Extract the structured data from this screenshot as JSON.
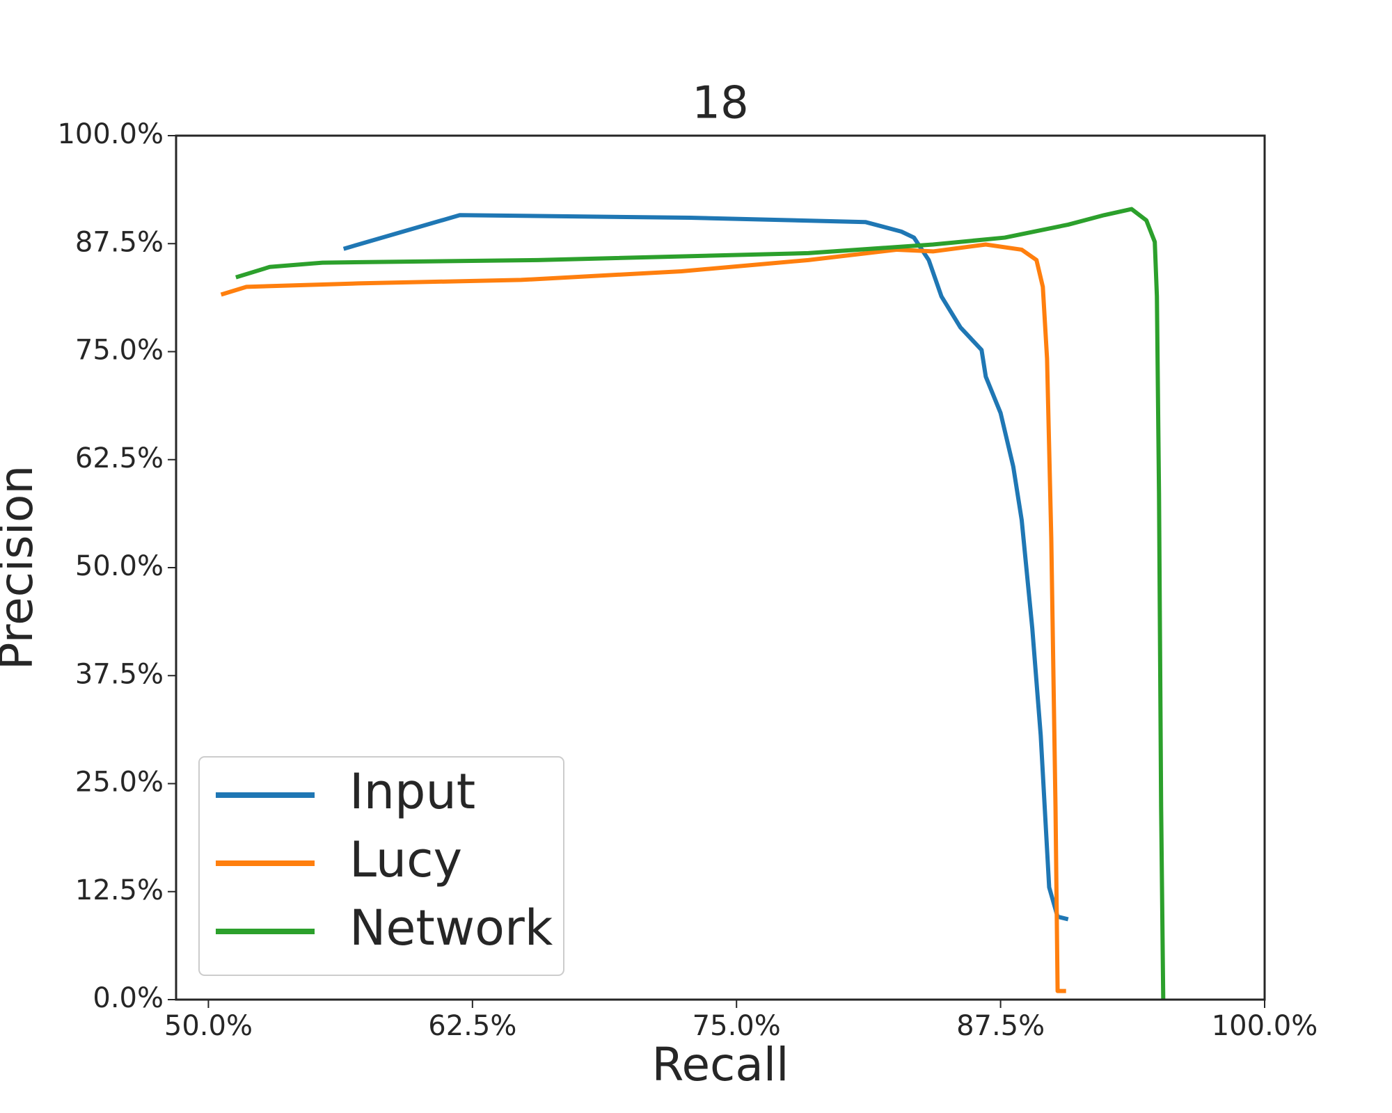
{
  "chart_data": {
    "type": "line",
    "title": "18",
    "x_label": "Recall",
    "y_label": "Precision",
    "xlim": [
      48.47,
      100
    ],
    "ylim": [
      0,
      100
    ],
    "xticks": [
      {
        "value": 50,
        "label": "50.0%"
      },
      {
        "value": 62.5,
        "label": "62.5%"
      },
      {
        "value": 75,
        "label": "75.0%"
      },
      {
        "value": 87.5,
        "label": "87.5%"
      },
      {
        "value": 100,
        "label": "100.0%"
      }
    ],
    "yticks": [
      {
        "value": 0,
        "label": "0.0%"
      },
      {
        "value": 12.5,
        "label": "12.5%"
      },
      {
        "value": 25,
        "label": "25.0%"
      },
      {
        "value": 37.5,
        "label": "37.5%"
      },
      {
        "value": 50,
        "label": "50.0%"
      },
      {
        "value": 62.5,
        "label": "62.5%"
      },
      {
        "value": 75,
        "label": "75.0%"
      },
      {
        "value": 87.5,
        "label": "87.5%"
      },
      {
        "value": 100,
        "label": "100.0%"
      }
    ],
    "legend": "lower left",
    "series": [
      {
        "name": "Input",
        "color": "#1f77b4",
        "x": [
          56.4,
          61.9,
          72.8,
          81.1,
          82.8,
          83.4,
          84.1,
          84.7,
          85.6,
          86.6,
          86.8,
          87.5,
          88.1,
          88.5,
          89.0,
          89.4,
          89.8,
          90.2,
          90.7
        ],
        "values": [
          86.9,
          90.8,
          90.5,
          90.0,
          88.9,
          88.2,
          85.6,
          81.4,
          77.8,
          75.2,
          72.1,
          67.9,
          61.7,
          55.5,
          43.0,
          30.6,
          13.0,
          9.6,
          9.3
        ]
      },
      {
        "name": "Lucy",
        "color": "#ff7f0e",
        "x": [
          50.6,
          51.8,
          57.1,
          64.8,
          72.4,
          78.4,
          82.6,
          84.3,
          86.8,
          88.5,
          89.2,
          89.5,
          89.7,
          89.9,
          90.1,
          90.2,
          90.6
        ],
        "values": [
          81.6,
          82.5,
          82.9,
          83.3,
          84.3,
          85.6,
          86.8,
          86.6,
          87.4,
          86.8,
          85.6,
          82.5,
          74.2,
          53.4,
          22.3,
          1.0,
          1.0
        ]
      },
      {
        "name": "Network",
        "color": "#2ca02c",
        "x": [
          51.3,
          52.9,
          55.4,
          65.6,
          78.4,
          84.3,
          87.7,
          90.7,
          92.4,
          93.7,
          94.4,
          94.8,
          94.9,
          95.0,
          95.1,
          95.2
        ],
        "values": [
          83.6,
          84.8,
          85.3,
          85.6,
          86.4,
          87.4,
          88.2,
          89.7,
          90.8,
          91.5,
          90.2,
          87.7,
          81.4,
          58.6,
          22.3,
          0
        ]
      }
    ]
  }
}
